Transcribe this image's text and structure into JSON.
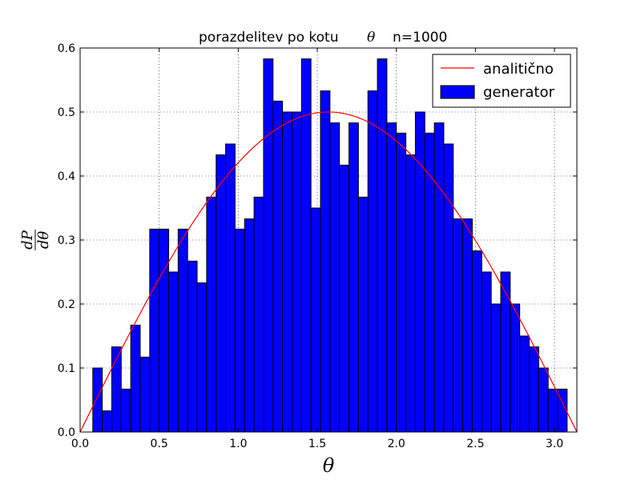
{
  "chart_data": {
    "type": "bar",
    "title_text": "porazdelitev po kotu",
    "title_symbol": "θ",
    "title_n": "n=1000",
    "xlabel": "θ",
    "ylabel_numerator": "dP",
    "ylabel_denominator": "dθ",
    "xlim": [
      0,
      3.14159
    ],
    "ylim": [
      0,
      0.6
    ],
    "xticks": [
      "0.0",
      "0.5",
      "1.0",
      "1.5",
      "2.0",
      "2.5",
      "3.0"
    ],
    "xtick_values": [
      0,
      0.5,
      1.0,
      1.5,
      2.0,
      2.5,
      3.0
    ],
    "yticks": [
      "0.0",
      "0.1",
      "0.2",
      "0.3",
      "0.4",
      "0.5",
      "0.6"
    ],
    "ytick_values": [
      0,
      0.1,
      0.2,
      0.3,
      0.4,
      0.5,
      0.6
    ],
    "grid": true,
    "legend_position": "top-right",
    "series": [
      {
        "name": "generator",
        "kind": "histogram",
        "color": "#0000ff",
        "edge_color": "#000000",
        "bin_start": 0.08,
        "bin_width": 0.06,
        "values": [
          0.1,
          0.033,
          0.133,
          0.067,
          0.167,
          0.117,
          0.317,
          0.317,
          0.25,
          0.317,
          0.267,
          0.233,
          0.367,
          0.433,
          0.45,
          0.317,
          0.333,
          0.367,
          0.583,
          0.517,
          0.5,
          0.5,
          0.583,
          0.35,
          0.533,
          0.483,
          0.417,
          0.483,
          0.367,
          0.533,
          0.583,
          0.483,
          0.467,
          0.433,
          0.5,
          0.467,
          0.483,
          0.45,
          0.333,
          0.333,
          0.283,
          0.25,
          0.2,
          0.25,
          0.2,
          0.15,
          0.133,
          0.1,
          0.067,
          0.067
        ]
      },
      {
        "name": "analitično",
        "kind": "line",
        "color": "#ff0000",
        "function": "0.5*sin(theta)"
      }
    ]
  }
}
